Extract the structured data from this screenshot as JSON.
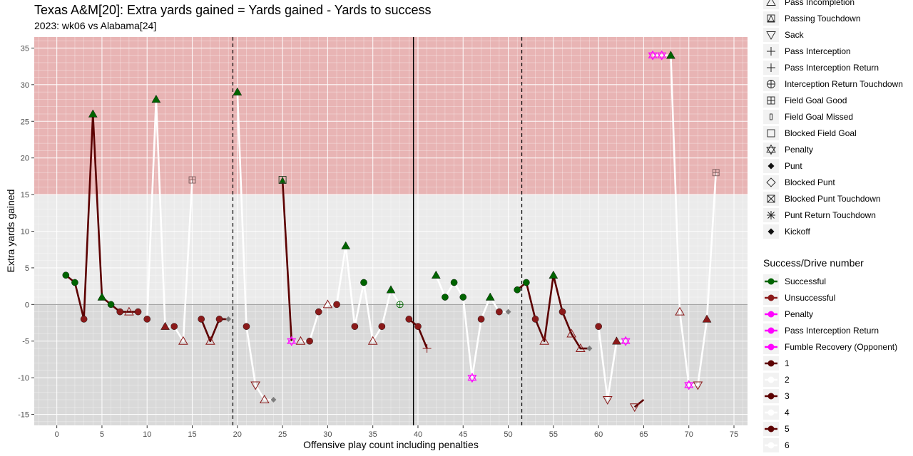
{
  "title": "Texas A&M[20]: Extra yards gained = Yards gained - Yards to success",
  "subtitle": "2023: wk06 vs Alabama[24]",
  "colors": {
    "panel_bg": "#EBEBEB",
    "success_zone": "#E8B4B4",
    "fail_zone": "#D9D9D9",
    "successful": "#006400",
    "unsuccessful": "#8B1A1A",
    "penalty": "#FF00FF",
    "drive_dark": "#5C0000",
    "drive_light": "#FFFFFF",
    "punt": "#7F7F7F"
  },
  "legend_playtype": {
    "items": [
      {
        "label": "Pass Incompletion",
        "icon": "triangle-open-icon"
      },
      {
        "label": "Passing Touchdown",
        "icon": "triangle-square-icon"
      },
      {
        "label": "Sack",
        "icon": "triangle-down-open-icon"
      },
      {
        "label": "Pass Interception",
        "icon": "plus-icon"
      },
      {
        "label": "Pass Interception Return",
        "icon": "plus-icon"
      },
      {
        "label": "Interception Return Touchdown",
        "icon": "circle-plus-icon"
      },
      {
        "label": "Field Goal Good",
        "icon": "square-plus-icon"
      },
      {
        "label": "Field Goal Missed",
        "icon": "thin-rect-icon"
      },
      {
        "label": "Blocked Field Goal",
        "icon": "square-open-icon"
      },
      {
        "label": "Penalty",
        "icon": "star-of-david-icon"
      },
      {
        "label": "Punt",
        "icon": "diamond-filled-icon"
      },
      {
        "label": "Blocked Punt",
        "icon": "diamond-open-icon"
      },
      {
        "label": "Blocked Punt Touchdown",
        "icon": "square-x-icon"
      },
      {
        "label": "Punt Return Touchdown",
        "icon": "asterisk-icon"
      },
      {
        "label": "Kickoff",
        "icon": "diamond-filled-icon"
      }
    ]
  },
  "legend_success": {
    "title": "Success/Drive number",
    "items": [
      {
        "label": "Successful",
        "color": "#006400",
        "kind": "dot"
      },
      {
        "label": "Unsuccessful",
        "color": "#8B1A1A",
        "kind": "dot"
      },
      {
        "label": "Penalty",
        "color": "#FF00FF",
        "kind": "dot"
      },
      {
        "label": "Pass Interception Return",
        "color": "#FF00FF",
        "kind": "dot"
      },
      {
        "label": "Fumble Recovery (Opponent)",
        "color": "#FF00FF",
        "kind": "dot"
      },
      {
        "label": "1",
        "color": "#5C0000",
        "kind": "line"
      },
      {
        "label": "2",
        "color": "#FFFFFF",
        "kind": "line"
      },
      {
        "label": "3",
        "color": "#5C0000",
        "kind": "line"
      },
      {
        "label": "4",
        "color": "#FFFFFF",
        "kind": "line"
      },
      {
        "label": "5",
        "color": "#5C0000",
        "kind": "line"
      },
      {
        "label": "6",
        "color": "#FFFFFF",
        "kind": "line"
      }
    ]
  },
  "chart_data": {
    "type": "scatter",
    "title": "Texas A&M[20]: Extra yards gained = Yards gained - Yards to success",
    "subtitle": "2023: wk06 vs Alabama[24]",
    "xlabel": "Offensive play count including penalties",
    "ylabel": "Extra yards gained",
    "xlim": [
      -2.5,
      76.5
    ],
    "ylim": [
      -16.5,
      36.5
    ],
    "x_ticks": [
      0,
      5,
      10,
      15,
      20,
      25,
      30,
      35,
      40,
      45,
      50,
      55,
      60,
      65,
      70,
      75
    ],
    "y_ticks": [
      -15,
      -10,
      -5,
      0,
      5,
      10,
      15,
      20,
      25,
      30,
      35
    ],
    "success_threshold": 15,
    "quarter_lines": [
      19.5,
      51.5
    ],
    "half_line": 39.5,
    "drives": [
      {
        "drive": 1,
        "points": [
          [
            1,
            4
          ],
          [
            2,
            3
          ],
          [
            3,
            -2
          ],
          [
            4,
            26
          ],
          [
            5,
            1
          ],
          [
            6,
            0
          ],
          [
            7,
            -1
          ],
          [
            8,
            -1
          ],
          [
            9,
            -1
          ]
        ]
      },
      {
        "drive": 2,
        "points": [
          [
            10,
            -2
          ],
          [
            11,
            28
          ],
          [
            12,
            -3
          ],
          [
            13,
            -3
          ],
          [
            14,
            -5
          ],
          [
            15,
            17
          ]
        ]
      },
      {
        "drive": 3,
        "points": [
          [
            16,
            -2
          ],
          [
            17,
            -5
          ],
          [
            18,
            -2
          ],
          [
            19,
            -2
          ]
        ]
      },
      {
        "drive": 4,
        "points": [
          [
            20,
            29
          ],
          [
            21,
            -3
          ],
          [
            22,
            -11
          ],
          [
            23,
            -13
          ],
          [
            24,
            -13
          ]
        ]
      },
      {
        "drive": 5,
        "points": [
          [
            25,
            17
          ],
          [
            26,
            -5
          ]
        ]
      },
      {
        "drive": 6,
        "points": [
          [
            27,
            -5
          ],
          [
            28,
            -5
          ],
          [
            29,
            -1
          ],
          [
            30,
            0
          ],
          [
            31,
            0
          ],
          [
            32,
            8
          ],
          [
            33,
            -3
          ],
          [
            34,
            3
          ],
          [
            35,
            -5
          ],
          [
            36,
            -3
          ],
          [
            37,
            2
          ],
          [
            38,
            0
          ]
        ]
      },
      {
        "drive": 7,
        "points": [
          [
            39,
            -2
          ],
          [
            40,
            -3
          ],
          [
            41,
            -6
          ]
        ]
      },
      {
        "drive": 8,
        "points": [
          [
            42,
            4
          ],
          [
            43,
            1
          ],
          [
            44,
            3
          ],
          [
            45,
            1
          ],
          [
            46,
            -10
          ],
          [
            47,
            -2
          ],
          [
            48,
            1
          ],
          [
            49,
            -1
          ],
          [
            50,
            -1
          ]
        ]
      },
      {
        "drive": 9,
        "points": [
          [
            51,
            2
          ],
          [
            52,
            3
          ],
          [
            53,
            -2
          ],
          [
            54,
            -5
          ],
          [
            55,
            4
          ],
          [
            56,
            -1
          ],
          [
            57,
            -4
          ],
          [
            58,
            -6
          ],
          [
            59,
            -6
          ]
        ]
      },
      {
        "drive": 10,
        "points": [
          [
            60,
            -3
          ],
          [
            61,
            -13
          ],
          [
            62,
            -5
          ],
          [
            63,
            -5
          ]
        ]
      },
      {
        "drive": 11,
        "points": [
          [
            64,
            -14
          ],
          [
            65,
            -13
          ]
        ]
      },
      {
        "drive": 12,
        "points": [
          [
            66,
            34
          ],
          [
            67,
            34
          ],
          [
            68,
            34
          ],
          [
            69,
            -1
          ],
          [
            70,
            -11
          ],
          [
            71,
            -11
          ],
          [
            72,
            -2
          ],
          [
            73,
            18
          ]
        ]
      }
    ],
    "points": [
      {
        "x": 1,
        "y": 4,
        "outcome": "Successful",
        "shape": "circle"
      },
      {
        "x": 2,
        "y": 3,
        "outcome": "Successful",
        "shape": "circle"
      },
      {
        "x": 3,
        "y": -2,
        "outcome": "Unsuccessful",
        "shape": "circle"
      },
      {
        "x": 4,
        "y": 26,
        "outcome": "Successful",
        "shape": "triangle"
      },
      {
        "x": 5,
        "y": 1,
        "outcome": "Successful",
        "shape": "triangle"
      },
      {
        "x": 6,
        "y": 0,
        "outcome": "Successful",
        "shape": "circle"
      },
      {
        "x": 7,
        "y": -1,
        "outcome": "Unsuccessful",
        "shape": "circle"
      },
      {
        "x": 8,
        "y": -1,
        "outcome": "Unsuccessful",
        "shape": "Pass Incompletion"
      },
      {
        "x": 9,
        "y": -1,
        "outcome": "Unsuccessful",
        "shape": "circle"
      },
      {
        "x": 10,
        "y": -2,
        "outcome": "Unsuccessful",
        "shape": "circle"
      },
      {
        "x": 11,
        "y": 28,
        "outcome": "Successful",
        "shape": "triangle"
      },
      {
        "x": 12,
        "y": -3,
        "outcome": "Unsuccessful",
        "shape": "triangle"
      },
      {
        "x": 13,
        "y": -3,
        "outcome": "Unsuccessful",
        "shape": "circle"
      },
      {
        "x": 14,
        "y": -5,
        "outcome": "Unsuccessful",
        "shape": "Pass Incompletion"
      },
      {
        "x": 15,
        "y": 17,
        "outcome": "Unsuccessful",
        "shape": "Field Goal Good"
      },
      {
        "x": 16,
        "y": -2,
        "outcome": "Unsuccessful",
        "shape": "circle"
      },
      {
        "x": 17,
        "y": -5,
        "outcome": "Unsuccessful",
        "shape": "Pass Incompletion"
      },
      {
        "x": 18,
        "y": -2,
        "outcome": "Unsuccessful",
        "shape": "circle"
      },
      {
        "x": 19,
        "y": -2,
        "outcome": "Unsuccessful",
        "shape": "Punt"
      },
      {
        "x": 20,
        "y": 29,
        "outcome": "Successful",
        "shape": "triangle"
      },
      {
        "x": 21,
        "y": -3,
        "outcome": "Unsuccessful",
        "shape": "circle"
      },
      {
        "x": 22,
        "y": -11,
        "outcome": "Unsuccessful",
        "shape": "Sack"
      },
      {
        "x": 23,
        "y": -13,
        "outcome": "Unsuccessful",
        "shape": "Pass Incompletion"
      },
      {
        "x": 24,
        "y": -13,
        "outcome": "Unsuccessful",
        "shape": "Punt"
      },
      {
        "x": 25,
        "y": 17,
        "outcome": "Successful",
        "shape": "Passing Touchdown"
      },
      {
        "x": 26,
        "y": -5,
        "outcome": "Penalty",
        "shape": "Penalty"
      },
      {
        "x": 27,
        "y": -5,
        "outcome": "Unsuccessful",
        "shape": "Pass Incompletion"
      },
      {
        "x": 28,
        "y": -5,
        "outcome": "Unsuccessful",
        "shape": "circle"
      },
      {
        "x": 29,
        "y": -1,
        "outcome": "Unsuccessful",
        "shape": "circle"
      },
      {
        "x": 30,
        "y": 0,
        "outcome": "Unsuccessful",
        "shape": "Pass Incompletion"
      },
      {
        "x": 31,
        "y": 0,
        "outcome": "Unsuccessful",
        "shape": "circle"
      },
      {
        "x": 32,
        "y": 8,
        "outcome": "Successful",
        "shape": "triangle"
      },
      {
        "x": 33,
        "y": -3,
        "outcome": "Unsuccessful",
        "shape": "circle"
      },
      {
        "x": 34,
        "y": 3,
        "outcome": "Successful",
        "shape": "circle"
      },
      {
        "x": 35,
        "y": -5,
        "outcome": "Unsuccessful",
        "shape": "Pass Incompletion"
      },
      {
        "x": 36,
        "y": -3,
        "outcome": "Unsuccessful",
        "shape": "circle"
      },
      {
        "x": 37,
        "y": 2,
        "outcome": "Successful",
        "shape": "triangle"
      },
      {
        "x": 38,
        "y": 0,
        "outcome": "Successful",
        "shape": "Interception Return Touchdown"
      },
      {
        "x": 39,
        "y": -2,
        "outcome": "Unsuccessful",
        "shape": "circle"
      },
      {
        "x": 40,
        "y": -3,
        "outcome": "Unsuccessful",
        "shape": "circle"
      },
      {
        "x": 41,
        "y": -6,
        "outcome": "Unsuccessful",
        "shape": "Pass Interception"
      },
      {
        "x": 42,
        "y": 4,
        "outcome": "Successful",
        "shape": "triangle"
      },
      {
        "x": 43,
        "y": 1,
        "outcome": "Successful",
        "shape": "circle"
      },
      {
        "x": 44,
        "y": 3,
        "outcome": "Successful",
        "shape": "circle"
      },
      {
        "x": 45,
        "y": 1,
        "outcome": "Successful",
        "shape": "circle"
      },
      {
        "x": 46,
        "y": -10,
        "outcome": "Penalty",
        "shape": "Penalty"
      },
      {
        "x": 47,
        "y": -2,
        "outcome": "Unsuccessful",
        "shape": "circle"
      },
      {
        "x": 48,
        "y": 1,
        "outcome": "Successful",
        "shape": "triangle"
      },
      {
        "x": 49,
        "y": -1,
        "outcome": "Unsuccessful",
        "shape": "circle"
      },
      {
        "x": 50,
        "y": -1,
        "outcome": "Unsuccessful",
        "shape": "Punt"
      },
      {
        "x": 51,
        "y": 2,
        "outcome": "Successful",
        "shape": "circle"
      },
      {
        "x": 52,
        "y": 3,
        "outcome": "Successful",
        "shape": "circle"
      },
      {
        "x": 53,
        "y": -2,
        "outcome": "Unsuccessful",
        "shape": "circle"
      },
      {
        "x": 54,
        "y": -5,
        "outcome": "Unsuccessful",
        "shape": "Pass Incompletion"
      },
      {
        "x": 55,
        "y": 4,
        "outcome": "Successful",
        "shape": "triangle"
      },
      {
        "x": 56,
        "y": -1,
        "outcome": "Unsuccessful",
        "shape": "circle"
      },
      {
        "x": 57,
        "y": -4,
        "outcome": "Unsuccessful",
        "shape": "Pass Incompletion"
      },
      {
        "x": 58,
        "y": -6,
        "outcome": "Unsuccessful",
        "shape": "Pass Incompletion"
      },
      {
        "x": 59,
        "y": -6,
        "outcome": "Unsuccessful",
        "shape": "Punt"
      },
      {
        "x": 60,
        "y": -3,
        "outcome": "Unsuccessful",
        "shape": "circle"
      },
      {
        "x": 61,
        "y": -13,
        "outcome": "Unsuccessful",
        "shape": "Sack"
      },
      {
        "x": 62,
        "y": -5,
        "outcome": "Unsuccessful",
        "shape": "triangle"
      },
      {
        "x": 63,
        "y": -5,
        "outcome": "Penalty",
        "shape": "Penalty"
      },
      {
        "x": 64,
        "y": -14,
        "outcome": "Unsuccessful",
        "shape": "Sack"
      },
      {
        "x": 66,
        "y": 34,
        "outcome": "Penalty",
        "shape": "Penalty"
      },
      {
        "x": 67,
        "y": 34,
        "outcome": "Penalty",
        "shape": "Penalty"
      },
      {
        "x": 68,
        "y": 34,
        "outcome": "Successful",
        "shape": "triangle"
      },
      {
        "x": 69,
        "y": -1,
        "outcome": "Unsuccessful",
        "shape": "Pass Incompletion"
      },
      {
        "x": 70,
        "y": -11,
        "outcome": "Penalty",
        "shape": "Penalty"
      },
      {
        "x": 71,
        "y": -11,
        "outcome": "Unsuccessful",
        "shape": "Sack"
      },
      {
        "x": 72,
        "y": -2,
        "outcome": "Unsuccessful",
        "shape": "triangle"
      },
      {
        "x": 73,
        "y": 18,
        "outcome": "Unsuccessful",
        "shape": "Field Goal Good"
      }
    ]
  }
}
